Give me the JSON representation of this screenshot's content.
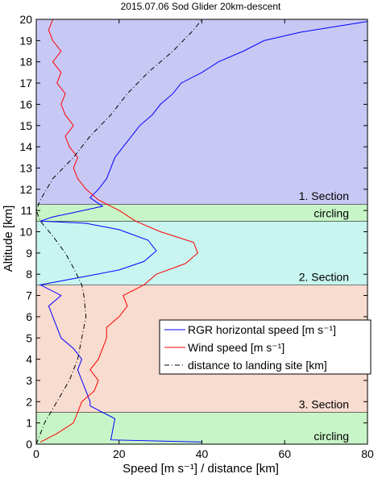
{
  "chart_data": {
    "type": "line",
    "title": "2015.07.06 Sod Glider 20km-descent",
    "xlabel": "Speed [m s⁻¹] / distance [km]",
    "ylabel": "Altitude [km]",
    "xlim": [
      0,
      80
    ],
    "ylim": [
      0,
      20
    ],
    "x_ticks": [
      0,
      20,
      40,
      60,
      80
    ],
    "y_ticks": [
      0,
      1,
      2,
      3,
      4,
      5,
      6,
      7,
      8,
      9,
      10,
      11,
      12,
      13,
      14,
      15,
      16,
      17,
      18,
      19,
      20
    ],
    "grid": false,
    "legend_position": "center-right",
    "bands": [
      {
        "label": "circling",
        "y0": 0.0,
        "y1": 1.5,
        "color": "#c8f5c8"
      },
      {
        "label": "3. Section",
        "y0": 1.5,
        "y1": 7.5,
        "color": "#f8dccf"
      },
      {
        "label": "2. Section",
        "y0": 7.5,
        "y1": 10.5,
        "color": "#c8f5f0"
      },
      {
        "label": "circling",
        "y0": 10.5,
        "y1": 11.3,
        "color": "#c8f5c8"
      },
      {
        "label": "1. Section",
        "y0": 11.3,
        "y1": 20.0,
        "color": "#c8c8f5"
      }
    ],
    "series": [
      {
        "name": "RGR horizontal speed [m s⁻¹]",
        "color": "#0000ff",
        "style": "solid",
        "points": [
          [
            40,
            0.1
          ],
          [
            18,
            0.2
          ],
          [
            19,
            1.2
          ],
          [
            16,
            1.5
          ],
          [
            13,
            1.8
          ],
          [
            13,
            2.0
          ],
          [
            12,
            2.5
          ],
          [
            11,
            3.0
          ],
          [
            10,
            3.5
          ],
          [
            11,
            4.0
          ],
          [
            9,
            4.5
          ],
          [
            6,
            5.0
          ],
          [
            5,
            5.5
          ],
          [
            4,
            6.0
          ],
          [
            3,
            6.5
          ],
          [
            6,
            7.0
          ],
          [
            1,
            7.5
          ],
          [
            12,
            7.9
          ],
          [
            20,
            8.2
          ],
          [
            26,
            8.6
          ],
          [
            29,
            9.1
          ],
          [
            27,
            9.6
          ],
          [
            20,
            10.1
          ],
          [
            12,
            10.4
          ],
          [
            1,
            10.5
          ],
          [
            4,
            10.7
          ],
          [
            9,
            10.9
          ],
          [
            16,
            11.2
          ],
          [
            13,
            11.6
          ],
          [
            15,
            12.0
          ],
          [
            17,
            12.5
          ],
          [
            18,
            13.0
          ],
          [
            19,
            13.5
          ],
          [
            21,
            14.0
          ],
          [
            23,
            14.5
          ],
          [
            25,
            15.0
          ],
          [
            28,
            15.5
          ],
          [
            30,
            16.0
          ],
          [
            33,
            16.5
          ],
          [
            35,
            17.0
          ],
          [
            40,
            17.5
          ],
          [
            44,
            18.0
          ],
          [
            50,
            18.5
          ],
          [
            55,
            19.0
          ],
          [
            64,
            19.4
          ],
          [
            80,
            19.9
          ]
        ]
      },
      {
        "name": "Wind speed [m s⁻¹]",
        "color": "#ff0000",
        "style": "solid",
        "points": [
          [
            1,
            0.1
          ],
          [
            5,
            0.5
          ],
          [
            9,
            1.0
          ],
          [
            10,
            1.5
          ],
          [
            11,
            2.0
          ],
          [
            14,
            2.5
          ],
          [
            15,
            3.0
          ],
          [
            13,
            3.5
          ],
          [
            15,
            4.0
          ],
          [
            16,
            4.5
          ],
          [
            17,
            5.0
          ],
          [
            17,
            5.5
          ],
          [
            20,
            6.0
          ],
          [
            22,
            6.5
          ],
          [
            21,
            7.0
          ],
          [
            26,
            7.5
          ],
          [
            29,
            8.0
          ],
          [
            36,
            8.5
          ],
          [
            39,
            9.0
          ],
          [
            38,
            9.5
          ],
          [
            30,
            10.0
          ],
          [
            24,
            10.5
          ],
          [
            20,
            11.0
          ],
          [
            15,
            11.5
          ],
          [
            12,
            12.0
          ],
          [
            10,
            12.5
          ],
          [
            9,
            13.0
          ],
          [
            10,
            13.5
          ],
          [
            8,
            14.0
          ],
          [
            7,
            14.5
          ],
          [
            9,
            15.0
          ],
          [
            7,
            15.5
          ],
          [
            6,
            16.0
          ],
          [
            7,
            16.5
          ],
          [
            5,
            17.0
          ],
          [
            6,
            17.5
          ],
          [
            4,
            18.0
          ],
          [
            6,
            18.5
          ],
          [
            4,
            19.0
          ],
          [
            3,
            19.5
          ],
          [
            4,
            20.0
          ]
        ]
      },
      {
        "name": "distance to landing site [km]",
        "color": "#000000",
        "style": "dashdot",
        "points": [
          [
            0,
            0.0
          ],
          [
            2,
            1.0
          ],
          [
            5,
            2.0
          ],
          [
            8,
            3.0
          ],
          [
            10,
            4.0
          ],
          [
            11,
            5.0
          ],
          [
            12,
            6.0
          ],
          [
            11.5,
            7.0
          ],
          [
            11,
            7.5
          ],
          [
            9,
            8.3
          ],
          [
            7,
            9.0
          ],
          [
            4,
            9.8
          ],
          [
            1,
            10.5
          ],
          [
            0,
            11.0
          ],
          [
            1,
            11.5
          ],
          [
            4,
            12.5
          ],
          [
            9,
            13.5
          ],
          [
            13,
            14.5
          ],
          [
            18,
            15.5
          ],
          [
            22,
            16.5
          ],
          [
            27,
            17.5
          ],
          [
            33,
            18.5
          ],
          [
            38,
            19.5
          ],
          [
            40,
            20.0
          ]
        ]
      }
    ],
    "legend": [
      "RGR horizontal speed [m s⁻¹]",
      "Wind speed [m s⁻¹]",
      "distance to landing site [km]"
    ]
  }
}
